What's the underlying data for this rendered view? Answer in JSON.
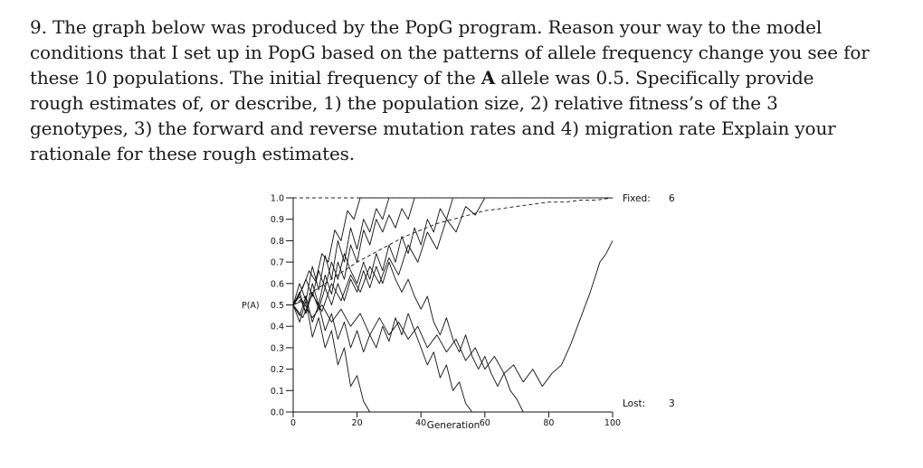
{
  "question": {
    "lines": [
      "9. The graph below was produced by the PopG program.  Reason your way to the model",
      "conditions that I set up in PopG based on the patterns of allele frequency change you see for",
      "these 10 populations.  The initial frequency of the ",
      "rough estimates of, or describe, 1) the population size, 2) relative fitness’s of the 3",
      "genotypes, 3) the forward and reverse mutation rates and 4) migration rate Explain your",
      "rationale for these rough estimates."
    ],
    "bold_allele": "A",
    "line3_tail": " allele was 0.5.  Specifically provide"
  },
  "chart_data": {
    "type": "line",
    "title": "",
    "xlabel": "Generation",
    "ylabel": "P(A)",
    "xlim": [
      0,
      100
    ],
    "ylim": [
      0.0,
      1.0
    ],
    "x_ticks": [
      0,
      20,
      40,
      60,
      80,
      100
    ],
    "y_ticks": [
      "0.0",
      "0.1",
      "0.2",
      "0.3",
      "0.4",
      "0.5",
      "0.6",
      "0.7",
      "0.8",
      "0.9",
      "1.0"
    ],
    "fixed_label": "Fixed:",
    "fixed_count": "6",
    "lost_label": "Lost:",
    "lost_count": "3",
    "series": [
      {
        "style": "dashed",
        "points": [
          [
            0,
            0.5
          ],
          [
            5,
            0.55
          ],
          [
            10,
            0.6
          ],
          [
            15,
            0.65
          ],
          [
            20,
            0.7
          ],
          [
            25,
            0.74
          ],
          [
            30,
            0.78
          ],
          [
            35,
            0.82
          ],
          [
            40,
            0.85
          ],
          [
            45,
            0.88
          ],
          [
            50,
            0.9
          ],
          [
            55,
            0.92
          ],
          [
            60,
            0.94
          ],
          [
            65,
            0.95
          ],
          [
            70,
            0.96
          ],
          [
            75,
            0.97
          ],
          [
            80,
            0.98
          ],
          [
            85,
            0.98
          ],
          [
            90,
            0.99
          ],
          [
            95,
            0.99
          ],
          [
            100,
            1.0
          ]
        ]
      },
      {
        "style": "solid",
        "points": [
          [
            0,
            0.5
          ],
          [
            3,
            0.58
          ],
          [
            5,
            0.66
          ],
          [
            7,
            0.61
          ],
          [
            9,
            0.74
          ],
          [
            11,
            0.7
          ],
          [
            13,
            0.85
          ],
          [
            15,
            0.8
          ],
          [
            17,
            0.94
          ],
          [
            19,
            0.9
          ],
          [
            21,
            1.0
          ],
          [
            100,
            1.0
          ]
        ]
      },
      {
        "style": "solid",
        "points": [
          [
            0,
            0.5
          ],
          [
            2,
            0.42
          ],
          [
            4,
            0.52
          ],
          [
            6,
            0.35
          ],
          [
            8,
            0.44
          ],
          [
            10,
            0.3
          ],
          [
            12,
            0.38
          ],
          [
            14,
            0.22
          ],
          [
            16,
            0.3
          ],
          [
            18,
            0.12
          ],
          [
            20,
            0.17
          ],
          [
            22,
            0.05
          ],
          [
            24,
            0.0
          ]
        ]
      },
      {
        "style": "solid",
        "points": [
          [
            0,
            0.5
          ],
          [
            2,
            0.6
          ],
          [
            4,
            0.52
          ],
          [
            6,
            0.68
          ],
          [
            8,
            0.57
          ],
          [
            10,
            0.73
          ],
          [
            12,
            0.62
          ],
          [
            14,
            0.8
          ],
          [
            16,
            0.7
          ],
          [
            18,
            0.86
          ],
          [
            20,
            0.76
          ],
          [
            22,
            0.9
          ],
          [
            24,
            0.84
          ],
          [
            26,
            0.95
          ],
          [
            28,
            0.9
          ],
          [
            30,
            1.0
          ],
          [
            100,
            1.0
          ]
        ]
      },
      {
        "style": "solid",
        "points": [
          [
            0,
            0.5
          ],
          [
            3,
            0.44
          ],
          [
            6,
            0.55
          ],
          [
            9,
            0.47
          ],
          [
            12,
            0.6
          ],
          [
            15,
            0.52
          ],
          [
            18,
            0.64
          ],
          [
            21,
            0.56
          ],
          [
            24,
            0.68
          ],
          [
            27,
            0.6
          ],
          [
            30,
            0.72
          ],
          [
            33,
            0.64
          ],
          [
            36,
            0.78
          ],
          [
            39,
            0.7
          ],
          [
            42,
            0.84
          ],
          [
            45,
            0.76
          ],
          [
            48,
            0.9
          ],
          [
            51,
            0.84
          ],
          [
            54,
            0.96
          ],
          [
            57,
            0.92
          ],
          [
            60,
            1.0
          ],
          [
            100,
            1.0
          ]
        ]
      },
      {
        "style": "solid",
        "points": [
          [
            0,
            0.5
          ],
          [
            2,
            0.56
          ],
          [
            4,
            0.46
          ],
          [
            6,
            0.6
          ],
          [
            8,
            0.5
          ],
          [
            10,
            0.64
          ],
          [
            12,
            0.55
          ],
          [
            14,
            0.7
          ],
          [
            16,
            0.62
          ],
          [
            18,
            0.78
          ],
          [
            20,
            0.7
          ],
          [
            22,
            0.85
          ],
          [
            24,
            0.78
          ],
          [
            26,
            0.9
          ],
          [
            28,
            0.84
          ],
          [
            30,
            0.92
          ],
          [
            32,
            0.86
          ],
          [
            34,
            0.95
          ],
          [
            36,
            0.9
          ],
          [
            38,
            1.0
          ],
          [
            100,
            1.0
          ]
        ]
      },
      {
        "style": "solid",
        "points": [
          [
            0,
            0.5
          ],
          [
            2,
            0.45
          ],
          [
            4,
            0.54
          ],
          [
            6,
            0.42
          ],
          [
            8,
            0.5
          ],
          [
            10,
            0.38
          ],
          [
            12,
            0.46
          ],
          [
            14,
            0.34
          ],
          [
            16,
            0.42
          ],
          [
            18,
            0.3
          ],
          [
            20,
            0.38
          ],
          [
            22,
            0.28
          ],
          [
            24,
            0.36
          ],
          [
            26,
            0.3
          ],
          [
            28,
            0.4
          ],
          [
            30,
            0.33
          ],
          [
            32,
            0.44
          ],
          [
            34,
            0.36
          ],
          [
            36,
            0.46
          ],
          [
            38,
            0.38
          ],
          [
            40,
            0.3
          ],
          [
            42,
            0.22
          ],
          [
            44,
            0.28
          ],
          [
            46,
            0.16
          ],
          [
            48,
            0.22
          ],
          [
            50,
            0.1
          ],
          [
            52,
            0.14
          ],
          [
            54,
            0.04
          ],
          [
            56,
            0.0
          ]
        ]
      },
      {
        "style": "solid",
        "points": [
          [
            0,
            0.5
          ],
          [
            2,
            0.55
          ],
          [
            4,
            0.62
          ],
          [
            6,
            0.54
          ],
          [
            8,
            0.66
          ],
          [
            10,
            0.58
          ],
          [
            12,
            0.7
          ],
          [
            14,
            0.62
          ],
          [
            16,
            0.74
          ],
          [
            18,
            0.66
          ],
          [
            20,
            0.6
          ],
          [
            22,
            0.7
          ],
          [
            24,
            0.62
          ],
          [
            26,
            0.74
          ],
          [
            28,
            0.66
          ],
          [
            30,
            0.78
          ],
          [
            32,
            0.7
          ],
          [
            34,
            0.82
          ],
          [
            36,
            0.74
          ],
          [
            38,
            0.86
          ],
          [
            40,
            0.78
          ],
          [
            42,
            0.9
          ],
          [
            44,
            0.84
          ],
          [
            46,
            0.95
          ],
          [
            48,
            0.9
          ],
          [
            50,
            1.0
          ],
          [
            100,
            1.0
          ]
        ]
      },
      {
        "style": "solid",
        "points": [
          [
            0,
            0.5
          ],
          [
            2,
            0.54
          ],
          [
            4,
            0.46
          ],
          [
            6,
            0.56
          ],
          [
            8,
            0.48
          ],
          [
            10,
            0.58
          ],
          [
            12,
            0.5
          ],
          [
            14,
            0.6
          ],
          [
            16,
            0.52
          ],
          [
            18,
            0.62
          ],
          [
            20,
            0.56
          ],
          [
            22,
            0.66
          ],
          [
            24,
            0.58
          ],
          [
            26,
            0.68
          ],
          [
            28,
            0.6
          ],
          [
            30,
            0.7
          ],
          [
            32,
            0.62
          ],
          [
            34,
            0.56
          ],
          [
            36,
            0.62
          ],
          [
            38,
            0.54
          ],
          [
            40,
            0.48
          ],
          [
            42,
            0.54
          ],
          [
            44,
            0.42
          ],
          [
            46,
            0.36
          ],
          [
            48,
            0.44
          ],
          [
            50,
            0.34
          ],
          [
            52,
            0.28
          ],
          [
            54,
            0.36
          ],
          [
            56,
            0.26
          ],
          [
            58,
            0.2
          ],
          [
            60,
            0.26
          ],
          [
            62,
            0.18
          ],
          [
            64,
            0.12
          ],
          [
            66,
            0.18
          ],
          [
            68,
            0.1
          ],
          [
            70,
            0.06
          ],
          [
            72,
            0.0
          ]
        ]
      },
      {
        "style": "solid",
        "points": [
          [
            0,
            0.5
          ],
          [
            3,
            0.52
          ],
          [
            6,
            0.44
          ],
          [
            9,
            0.5
          ],
          [
            12,
            0.42
          ],
          [
            15,
            0.48
          ],
          [
            18,
            0.4
          ],
          [
            21,
            0.46
          ],
          [
            24,
            0.36
          ],
          [
            27,
            0.44
          ],
          [
            30,
            0.36
          ],
          [
            33,
            0.42
          ],
          [
            36,
            0.34
          ],
          [
            39,
            0.4
          ],
          [
            42,
            0.3
          ],
          [
            45,
            0.36
          ],
          [
            48,
            0.28
          ],
          [
            51,
            0.34
          ],
          [
            54,
            0.24
          ],
          [
            57,
            0.3
          ],
          [
            60,
            0.2
          ],
          [
            63,
            0.26
          ],
          [
            66,
            0.18
          ],
          [
            69,
            0.22
          ],
          [
            72,
            0.14
          ],
          [
            75,
            0.2
          ],
          [
            78,
            0.12
          ],
          [
            81,
            0.18
          ],
          [
            84,
            0.22
          ],
          [
            87,
            0.32
          ],
          [
            90,
            0.44
          ],
          [
            93,
            0.56
          ],
          [
            96,
            0.7
          ],
          [
            98,
            0.74
          ],
          [
            100,
            0.8
          ]
        ]
      }
    ]
  }
}
